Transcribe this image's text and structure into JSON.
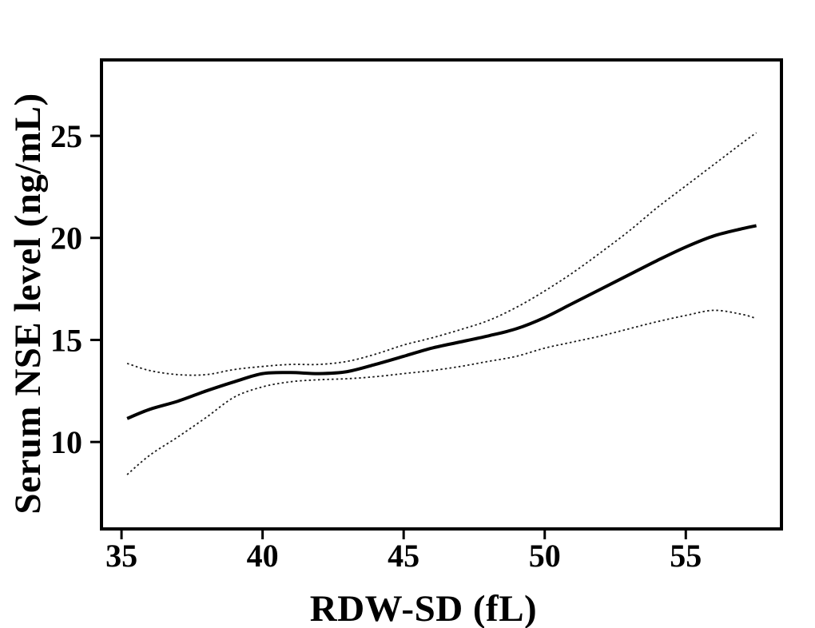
{
  "figure": {
    "background_color": "#ffffff",
    "frame_color": "#000000"
  },
  "chart_data": {
    "type": "line",
    "title": "",
    "xlabel": "RDW-SD (fL)",
    "ylabel": "Serum NSE level (ng/mL)",
    "x_ticks": [
      35,
      40,
      45,
      50,
      55
    ],
    "y_ticks": [
      10,
      15,
      20,
      25
    ],
    "xlim": [
      34.29,
      58.39
    ],
    "ylim": [
      5.74,
      28.72
    ],
    "grid": false,
    "legend_position": "none",
    "x": [
      35.2,
      36,
      37,
      38,
      39,
      40,
      41,
      42,
      43,
      44,
      45,
      46,
      47,
      48,
      49,
      50,
      51,
      52,
      53,
      54,
      55,
      56,
      57,
      57.5
    ],
    "series": [
      {
        "name": "fitted-curve",
        "style": "solid",
        "color": "#000000",
        "width": 4,
        "values": [
          11.15,
          11.6,
          12.0,
          12.5,
          12.95,
          13.35,
          13.4,
          13.35,
          13.45,
          13.8,
          14.2,
          14.6,
          14.9,
          15.2,
          15.55,
          16.1,
          16.8,
          17.5,
          18.2,
          18.9,
          19.55,
          20.1,
          20.45,
          20.6
        ]
      },
      {
        "name": "upper-confidence-band",
        "style": "dotted",
        "color": "#1a1a1a",
        "width": 1.8,
        "values": [
          13.85,
          13.5,
          13.3,
          13.3,
          13.55,
          13.7,
          13.8,
          13.8,
          13.95,
          14.3,
          14.75,
          15.1,
          15.5,
          15.95,
          16.6,
          17.4,
          18.3,
          19.3,
          20.35,
          21.5,
          22.55,
          23.6,
          24.65,
          25.15
        ]
      },
      {
        "name": "lower-confidence-band",
        "style": "dotted",
        "color": "#1a1a1a",
        "width": 1.8,
        "values": [
          8.4,
          9.35,
          10.25,
          11.2,
          12.2,
          12.7,
          12.95,
          13.05,
          13.1,
          13.2,
          13.35,
          13.5,
          13.7,
          13.95,
          14.2,
          14.6,
          14.9,
          15.2,
          15.55,
          15.9,
          16.2,
          16.45,
          16.25,
          16.05
        ]
      }
    ]
  }
}
